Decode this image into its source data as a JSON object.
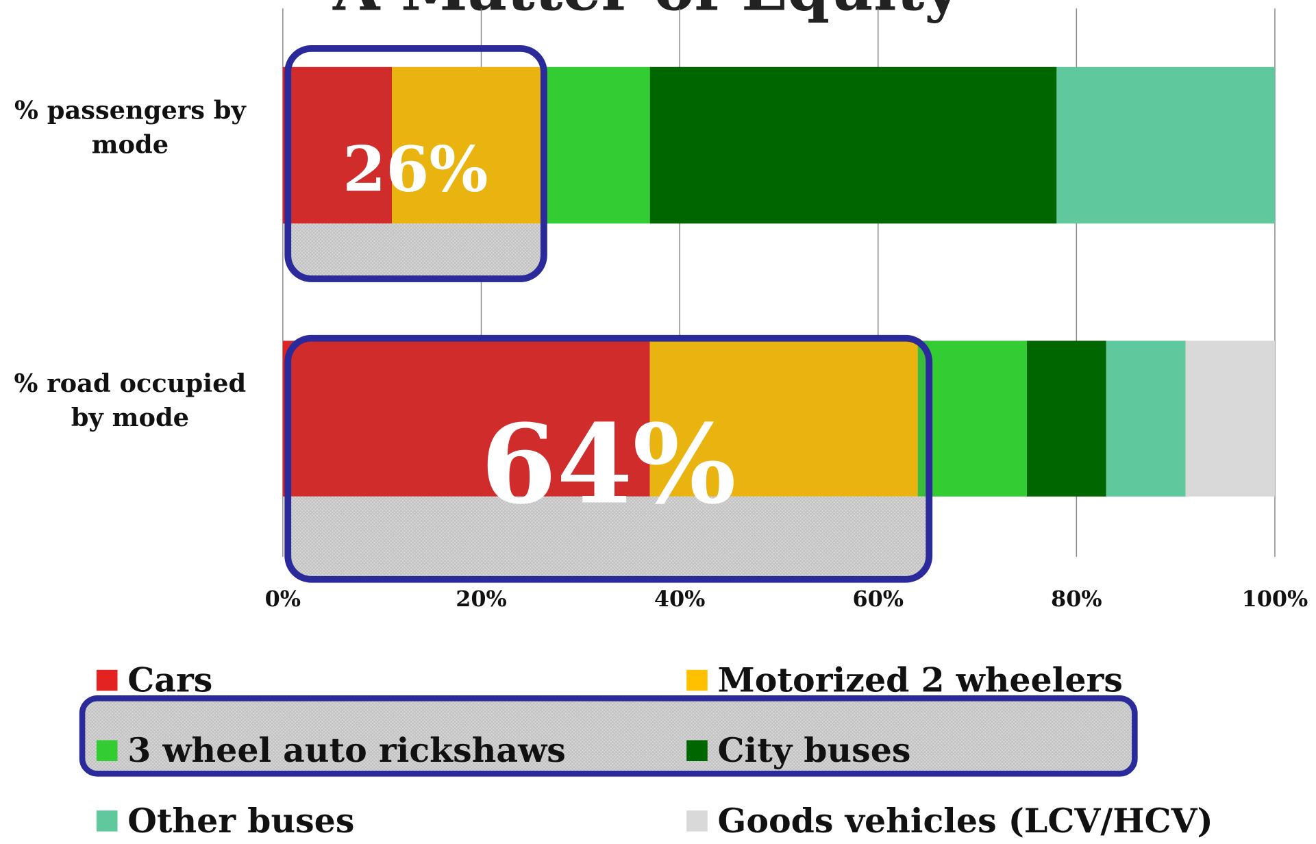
{
  "chart_data": {
    "type": "stacked_bar_horizontal",
    "title": "A Matter of Equity",
    "categories": [
      "% passengers by mode",
      "% road occupied by mode"
    ],
    "series": [
      {
        "name": "Cars",
        "color": "#e32222",
        "values": [
          11,
          37
        ]
      },
      {
        "name": "Motorized 2 wheelers",
        "color": "#ffc000",
        "values": [
          15,
          27
        ]
      },
      {
        "name": "3 wheel auto rickshaws",
        "color": "#33cc33",
        "values": [
          11,
          11
        ]
      },
      {
        "name": "City buses",
        "color": "#006600",
        "values": [
          41,
          8
        ]
      },
      {
        "name": "Other buses",
        "color": "#5fc99d",
        "values": [
          22,
          8
        ]
      },
      {
        "name": "Goods vehicles (LCV/HCV)",
        "color": "#d9d9d9",
        "values": [
          0,
          9
        ]
      }
    ],
    "xlim": [
      0,
      100
    ],
    "xticks": [
      {
        "value": 0,
        "label": "0%"
      },
      {
        "value": 20,
        "label": "20%"
      },
      {
        "value": 40,
        "label": "40%"
      },
      {
        "value": 60,
        "label": "60%"
      },
      {
        "value": 80,
        "label": "80%"
      },
      {
        "value": 100,
        "label": "100%"
      }
    ],
    "grid": true,
    "annotations": [
      "26%",
      "64%"
    ],
    "legend": "bottom"
  }
}
